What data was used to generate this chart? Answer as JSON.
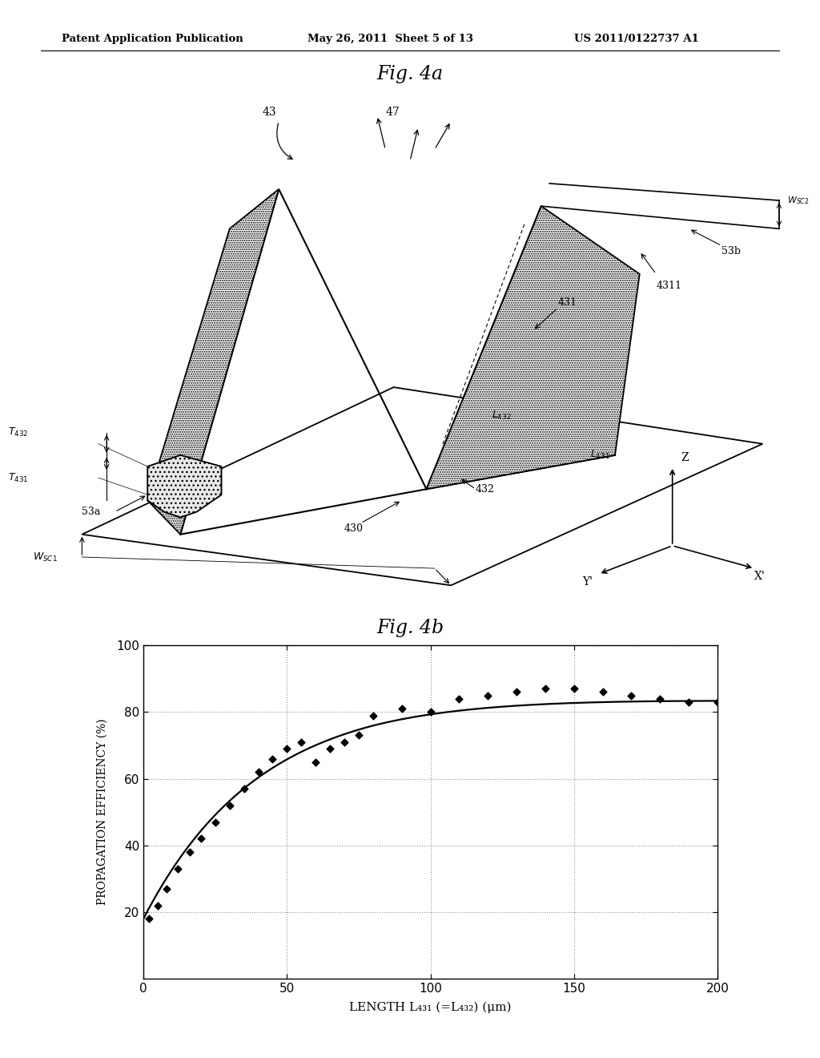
{
  "header_left": "Patent Application Publication",
  "header_mid": "May 26, 2011  Sheet 5 of 13",
  "header_right": "US 2011/0122737 A1",
  "fig4a_title": "Fig. 4a",
  "fig4b_title": "Fig. 4b",
  "graph_xlabel": "LENGTH L₄₃₁ (=L₄₃₂) (μm)",
  "graph_ylabel": "PROPAGATION EFFICIENCY (%)",
  "xlim": [
    0,
    200
  ],
  "ylim": [
    0,
    100
  ],
  "xticks": [
    0,
    50,
    100,
    150,
    200
  ],
  "yticks": [
    20,
    40,
    60,
    80,
    100
  ],
  "scatter_x": [
    2,
    5,
    8,
    12,
    16,
    20,
    25,
    30,
    35,
    40,
    45,
    50,
    55,
    60,
    65,
    70,
    75,
    80,
    90,
    100,
    110,
    120,
    130,
    140,
    150,
    160,
    170,
    180,
    190,
    200
  ],
  "scatter_y": [
    18,
    22,
    27,
    33,
    38,
    42,
    47,
    52,
    57,
    62,
    66,
    69,
    71,
    65,
    69,
    71,
    73,
    79,
    81,
    80,
    84,
    85,
    86,
    87,
    87,
    86,
    85,
    84,
    83,
    83
  ],
  "bg_color": "#ffffff",
  "line_color": "#000000"
}
